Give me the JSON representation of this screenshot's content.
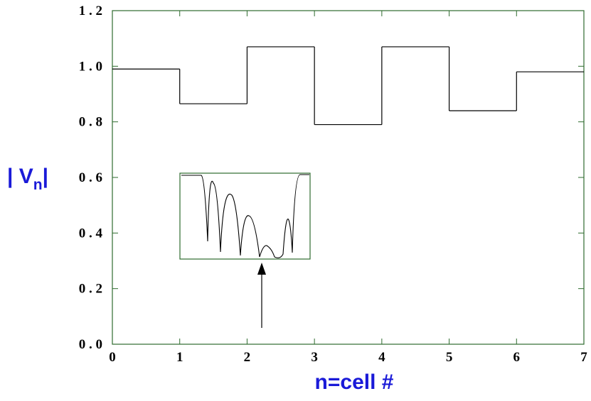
{
  "chart_data": {
    "type": "step",
    "x": [
      0,
      1,
      2,
      3,
      4,
      5,
      6
    ],
    "values": [
      0.99,
      0.865,
      1.07,
      0.79,
      1.07,
      0.84,
      0.98
    ],
    "color": "#000000",
    "xlim": [
      0,
      7
    ],
    "xticks": [
      0,
      1,
      2,
      3,
      4,
      5,
      6,
      7
    ],
    "ylim": [
      0,
      1.2
    ],
    "yticks": [
      {
        "value": 0,
        "label": "0 . 0"
      },
      {
        "value": 0.2,
        "label": "0 . 2"
      },
      {
        "value": 0.4,
        "label": "0 . 4"
      },
      {
        "value": 0.6,
        "label": "0 . 6"
      },
      {
        "value": 0.8,
        "label": "0 . 8"
      },
      {
        "value": 1.0,
        "label": "1 . 0"
      },
      {
        "value": 1.2,
        "label": "1 . 2"
      }
    ],
    "xlabel": "n=cell  #",
    "ylabel": {
      "main": "| V",
      "sub": "n",
      "end": "|"
    }
  }
}
